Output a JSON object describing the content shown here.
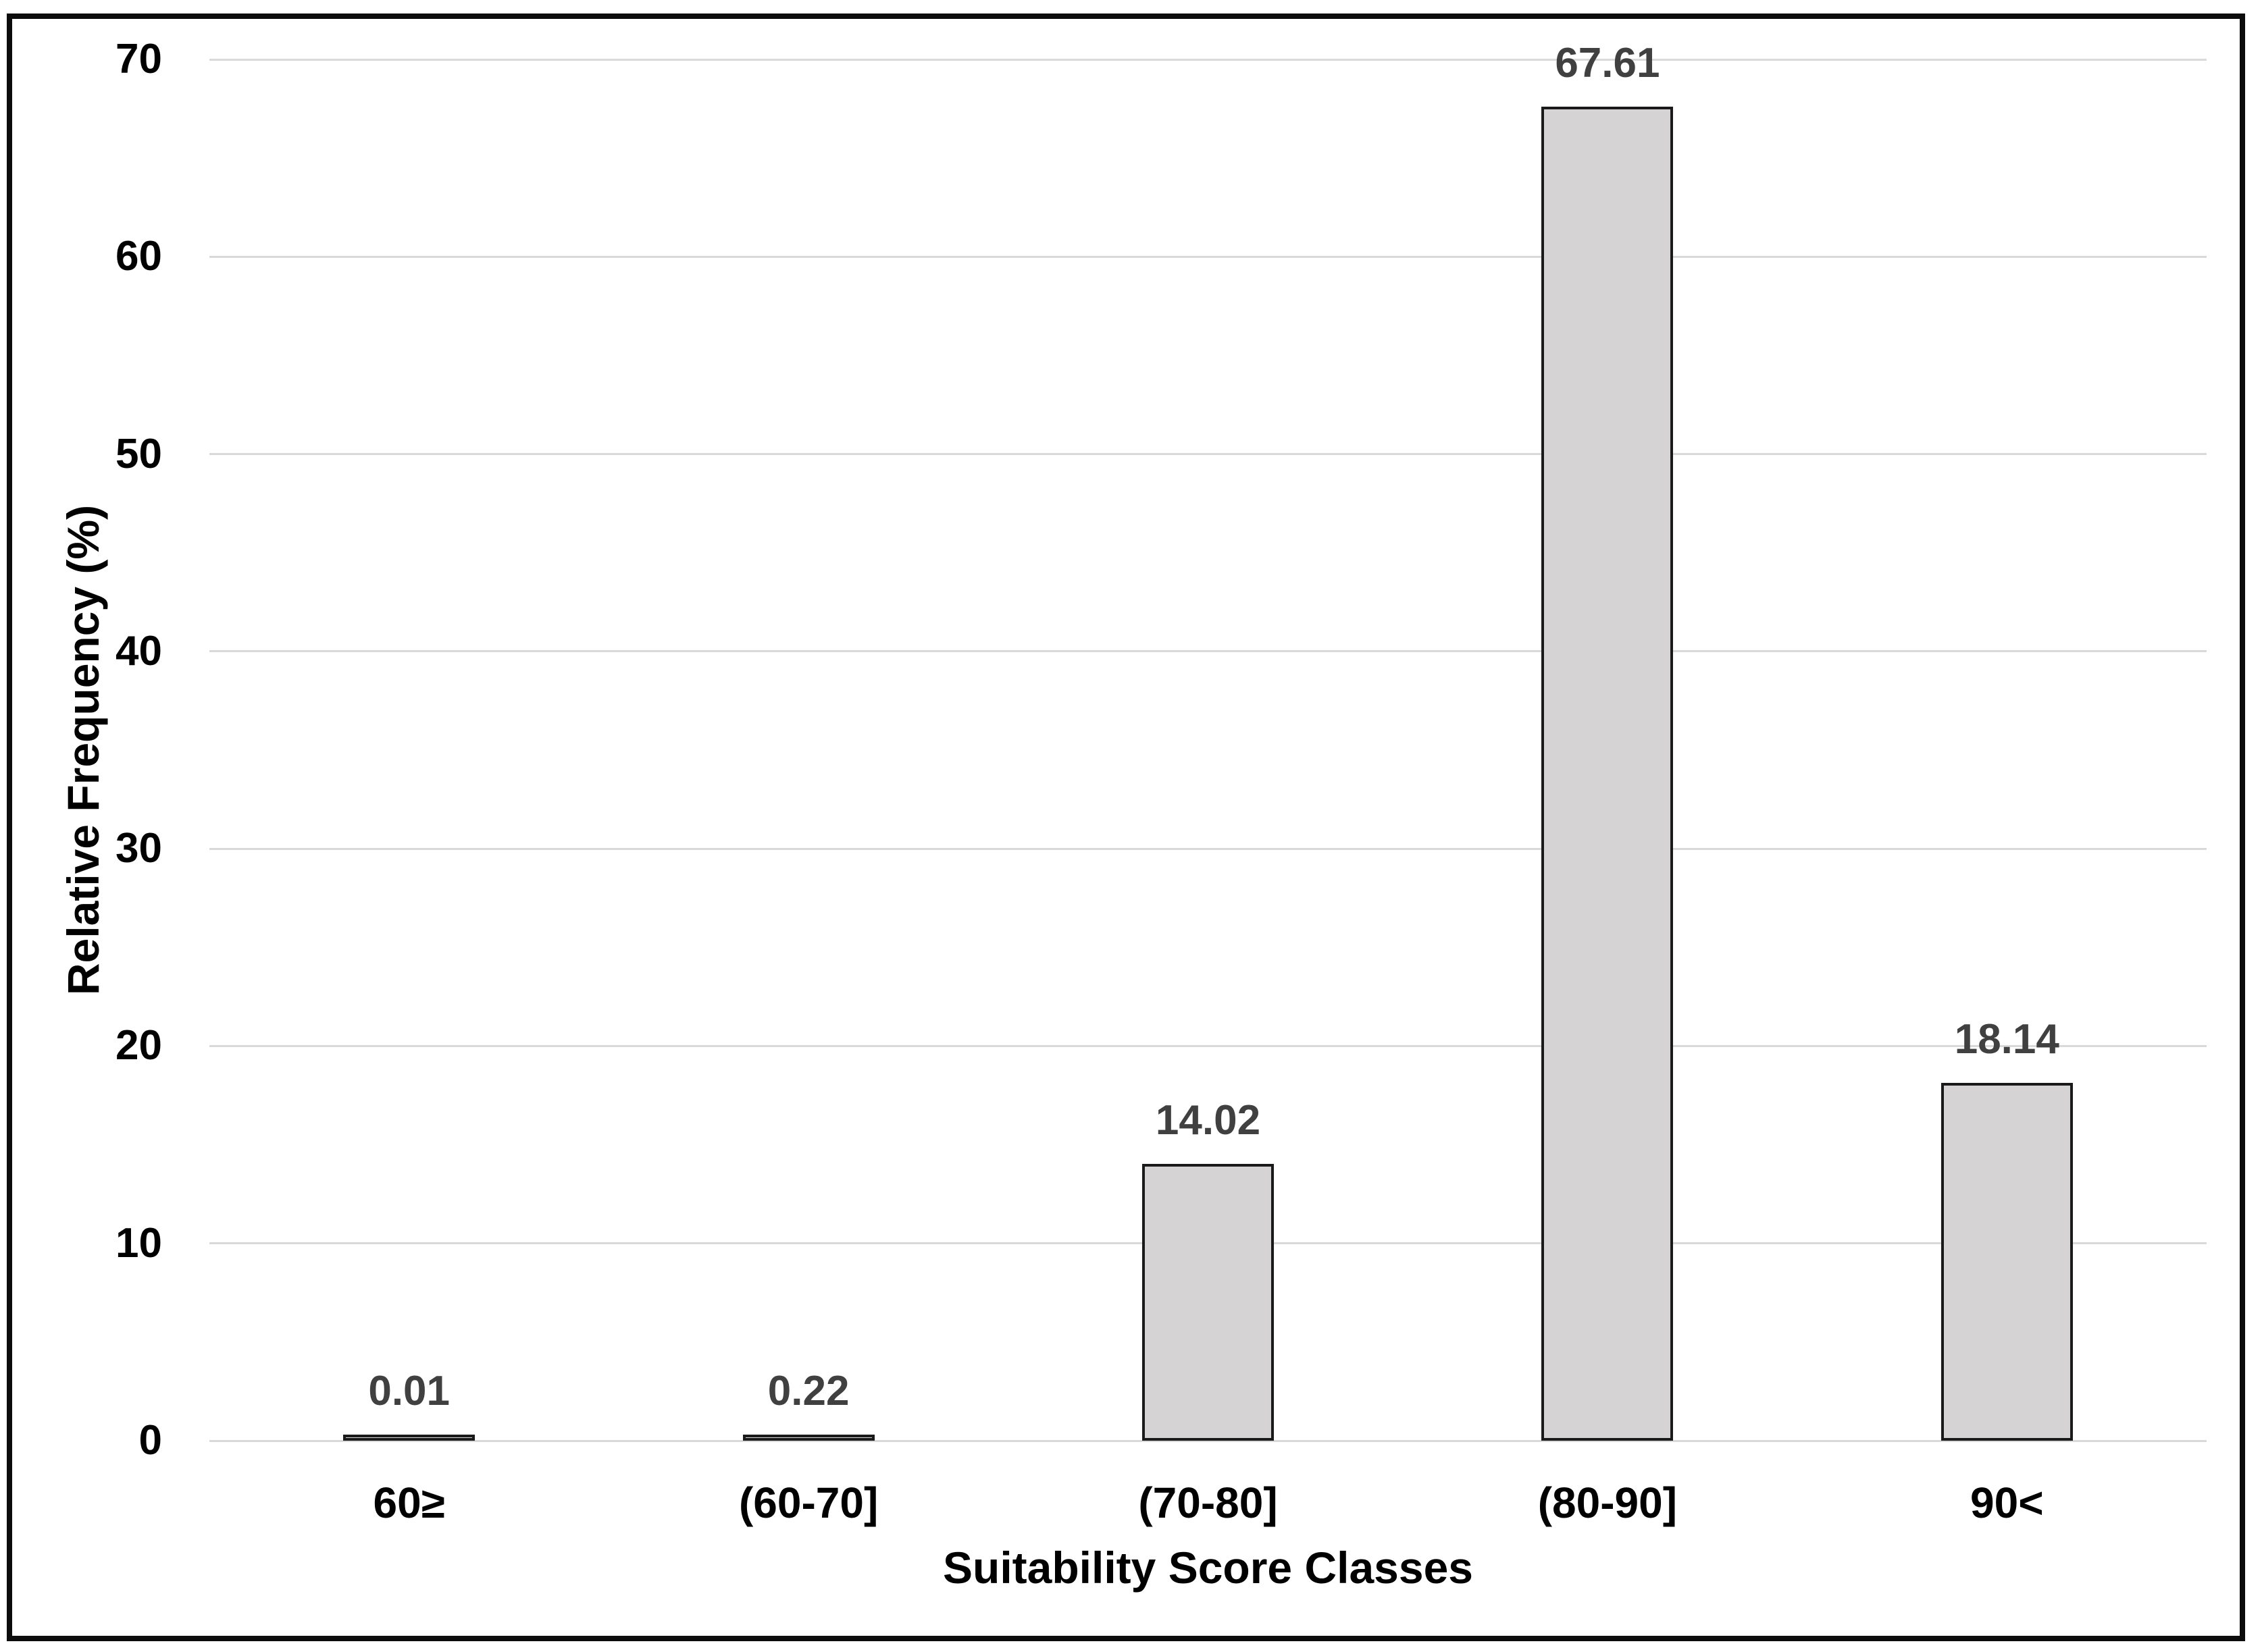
{
  "chart_data": {
    "type": "bar",
    "title": "",
    "categories": [
      "60≥",
      "(60-70]",
      "(70-80]",
      "(80-90]",
      "90<"
    ],
    "values": [
      0.01,
      0.22,
      14.02,
      67.61,
      18.14
    ],
    "data_labels": [
      "0.01",
      "0.22",
      "14.02",
      "67.61",
      "18.14"
    ],
    "xlabel": "Suitability Score Classes",
    "ylabel": "Relative Frequency (%)",
    "ylim": [
      0,
      70
    ],
    "yticks": [
      0,
      10,
      20,
      30,
      40,
      50,
      60,
      70
    ],
    "grid": "horizontal",
    "legend": "none",
    "colors": {
      "bar_fill": "#d5d3d3",
      "bar_border": "#1a1a1a",
      "gridline": "#d9d9d9",
      "data_label": "#404040",
      "tick_label": "#000000",
      "axis_title": "#000000",
      "frame_border": "#0c0c0c",
      "background": "#ffffff"
    }
  }
}
